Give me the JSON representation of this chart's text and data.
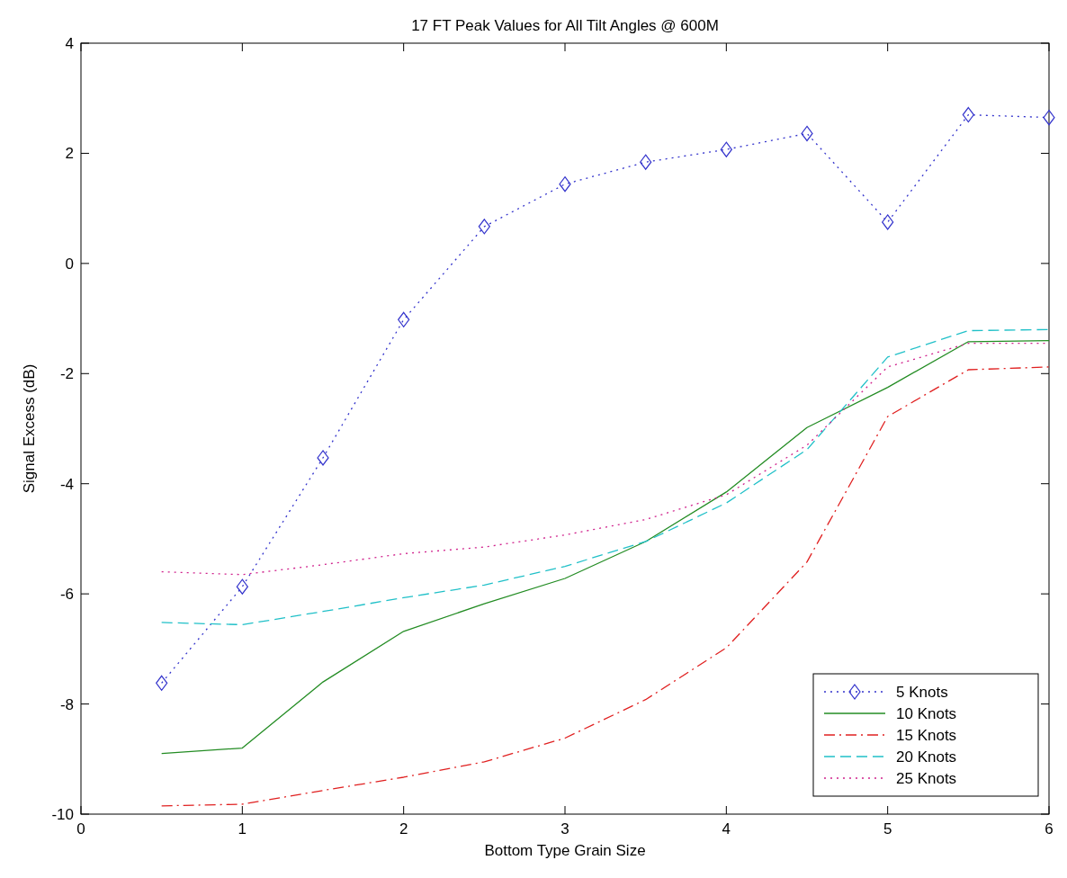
{
  "chart_data": {
    "type": "line",
    "title": "17 FT Peak Values for All Tilt Angles @ 600M",
    "xlabel": "Bottom Type Grain Size",
    "ylabel": "Signal Excess (dB)",
    "x": [
      0.5,
      1,
      1.5,
      2,
      2.5,
      3,
      3.5,
      4,
      4.5,
      5,
      5.5,
      6
    ],
    "xlim": [
      0,
      6
    ],
    "xticks": [
      0,
      1,
      2,
      3,
      4,
      5,
      6
    ],
    "ylim": [
      -10,
      4
    ],
    "yticks": [
      -10,
      -8,
      -6,
      -4,
      -2,
      0,
      2,
      4
    ],
    "grid": false,
    "legend": "bottom right",
    "series": [
      {
        "name": "5 Knots",
        "color": "#3333cc",
        "line_style": "dotted",
        "marker": "diamond",
        "values": [
          -7.62,
          -5.87,
          -3.53,
          -1.02,
          0.67,
          1.44,
          1.84,
          2.07,
          2.36,
          0.75,
          2.7,
          2.65
        ]
      },
      {
        "name": "10 Knots",
        "color": "#238c23",
        "line_style": "solid",
        "marker": "none",
        "values": [
          -8.9,
          -8.8,
          -7.6,
          -6.68,
          -6.18,
          -5.72,
          -5.05,
          -4.15,
          -2.98,
          -2.25,
          -1.42,
          -1.4
        ]
      },
      {
        "name": "15 Knots",
        "color": "#e02020",
        "line_style": "dashdot",
        "marker": "none",
        "values": [
          -9.85,
          -9.82,
          -9.57,
          -9.33,
          -9.05,
          -8.62,
          -7.92,
          -6.98,
          -5.42,
          -2.78,
          -1.93,
          -1.88
        ]
      },
      {
        "name": "20 Knots",
        "color": "#20c0c8",
        "line_style": "dashed",
        "marker": "none",
        "values": [
          -6.52,
          -6.56,
          -6.32,
          -6.07,
          -5.84,
          -5.5,
          -5.05,
          -4.35,
          -3.38,
          -1.7,
          -1.22,
          -1.2
        ]
      },
      {
        "name": "25 Knots",
        "color": "#d0208c",
        "line_style": "dotted",
        "marker": "none",
        "values": [
          -5.6,
          -5.65,
          -5.47,
          -5.27,
          -5.15,
          -4.93,
          -4.65,
          -4.2,
          -3.3,
          -1.88,
          -1.45,
          -1.45
        ]
      }
    ]
  }
}
